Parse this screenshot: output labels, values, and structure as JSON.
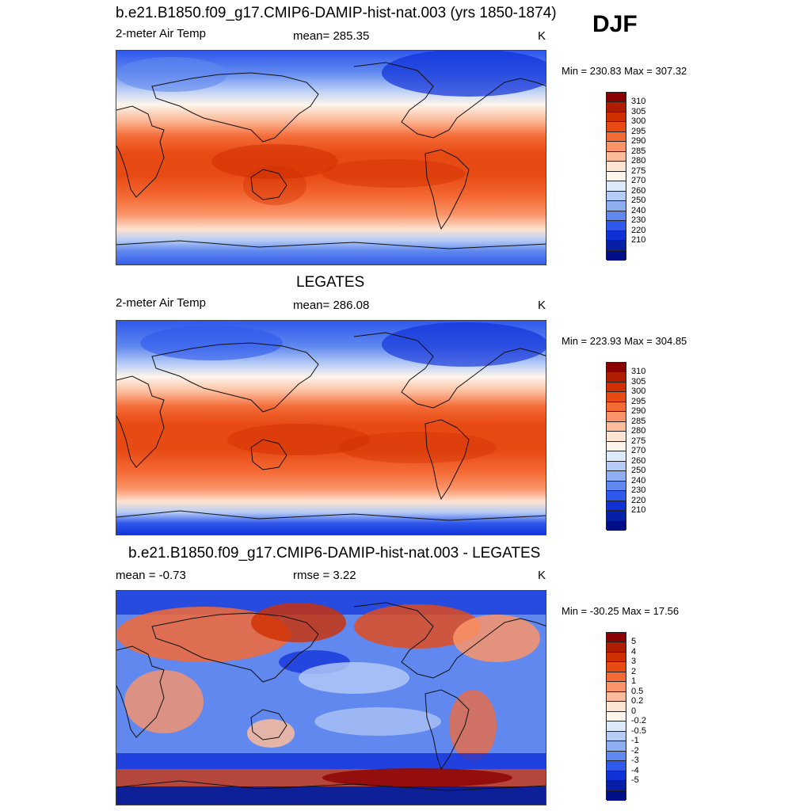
{
  "season": "DJF",
  "panels": [
    {
      "title": "b.e21.B1850.f09_g17.CMIP6-DAMIP-hist-nat.003 (yrs 1850-1874)",
      "left_label": "2-meter Air Temp",
      "center_label": "mean= 285.35",
      "units": "K",
      "stats": "Min = 230.83 Max = 307.32"
    },
    {
      "title": "LEGATES",
      "left_label": "2-meter Air Temp",
      "center_label": "mean= 286.08",
      "units": "K",
      "stats": "Min = 223.93 Max = 304.85"
    },
    {
      "title": "b.e21.B1850.f09_g17.CMIP6-DAMIP-hist-nat.003 - LEGATES",
      "left_label": "mean =  -0.73",
      "center_label": "rmse =   3.22",
      "units": "K",
      "stats": "Min = -30.25 Max =  17.56"
    }
  ],
  "colorbars": {
    "temperature": {
      "levels": [
        "310",
        "305",
        "300",
        "295",
        "290",
        "285",
        "280",
        "275",
        "270",
        "260",
        "250",
        "240",
        "230",
        "220",
        "210"
      ],
      "colors": [
        "#8b0000",
        "#b01c00",
        "#d03000",
        "#e84a14",
        "#f46a35",
        "#fa9468",
        "#fcbc9c",
        "#fde3d2",
        "#fdf5ec",
        "#dbe9fb",
        "#b6ccf6",
        "#8eaef2",
        "#6088ef",
        "#2f58ec",
        "#1030d8",
        "#061fa6",
        "#000e88"
      ]
    },
    "difference": {
      "levels": [
        "5",
        "4",
        "3",
        "2",
        "1",
        "0.5",
        "0.2",
        "0",
        "-0.2",
        "-0.5",
        "-1",
        "-2",
        "-3",
        "-4",
        "-5"
      ],
      "colors": [
        "#8b0000",
        "#b01c00",
        "#d03000",
        "#e84a14",
        "#f46a35",
        "#fa9468",
        "#fcbc9c",
        "#fde3d2",
        "#fdf5ec",
        "#dbe9fb",
        "#b6ccf6",
        "#8eaef2",
        "#6088ef",
        "#2f58ec",
        "#1030d8",
        "#061fa6",
        "#000e88"
      ]
    }
  }
}
